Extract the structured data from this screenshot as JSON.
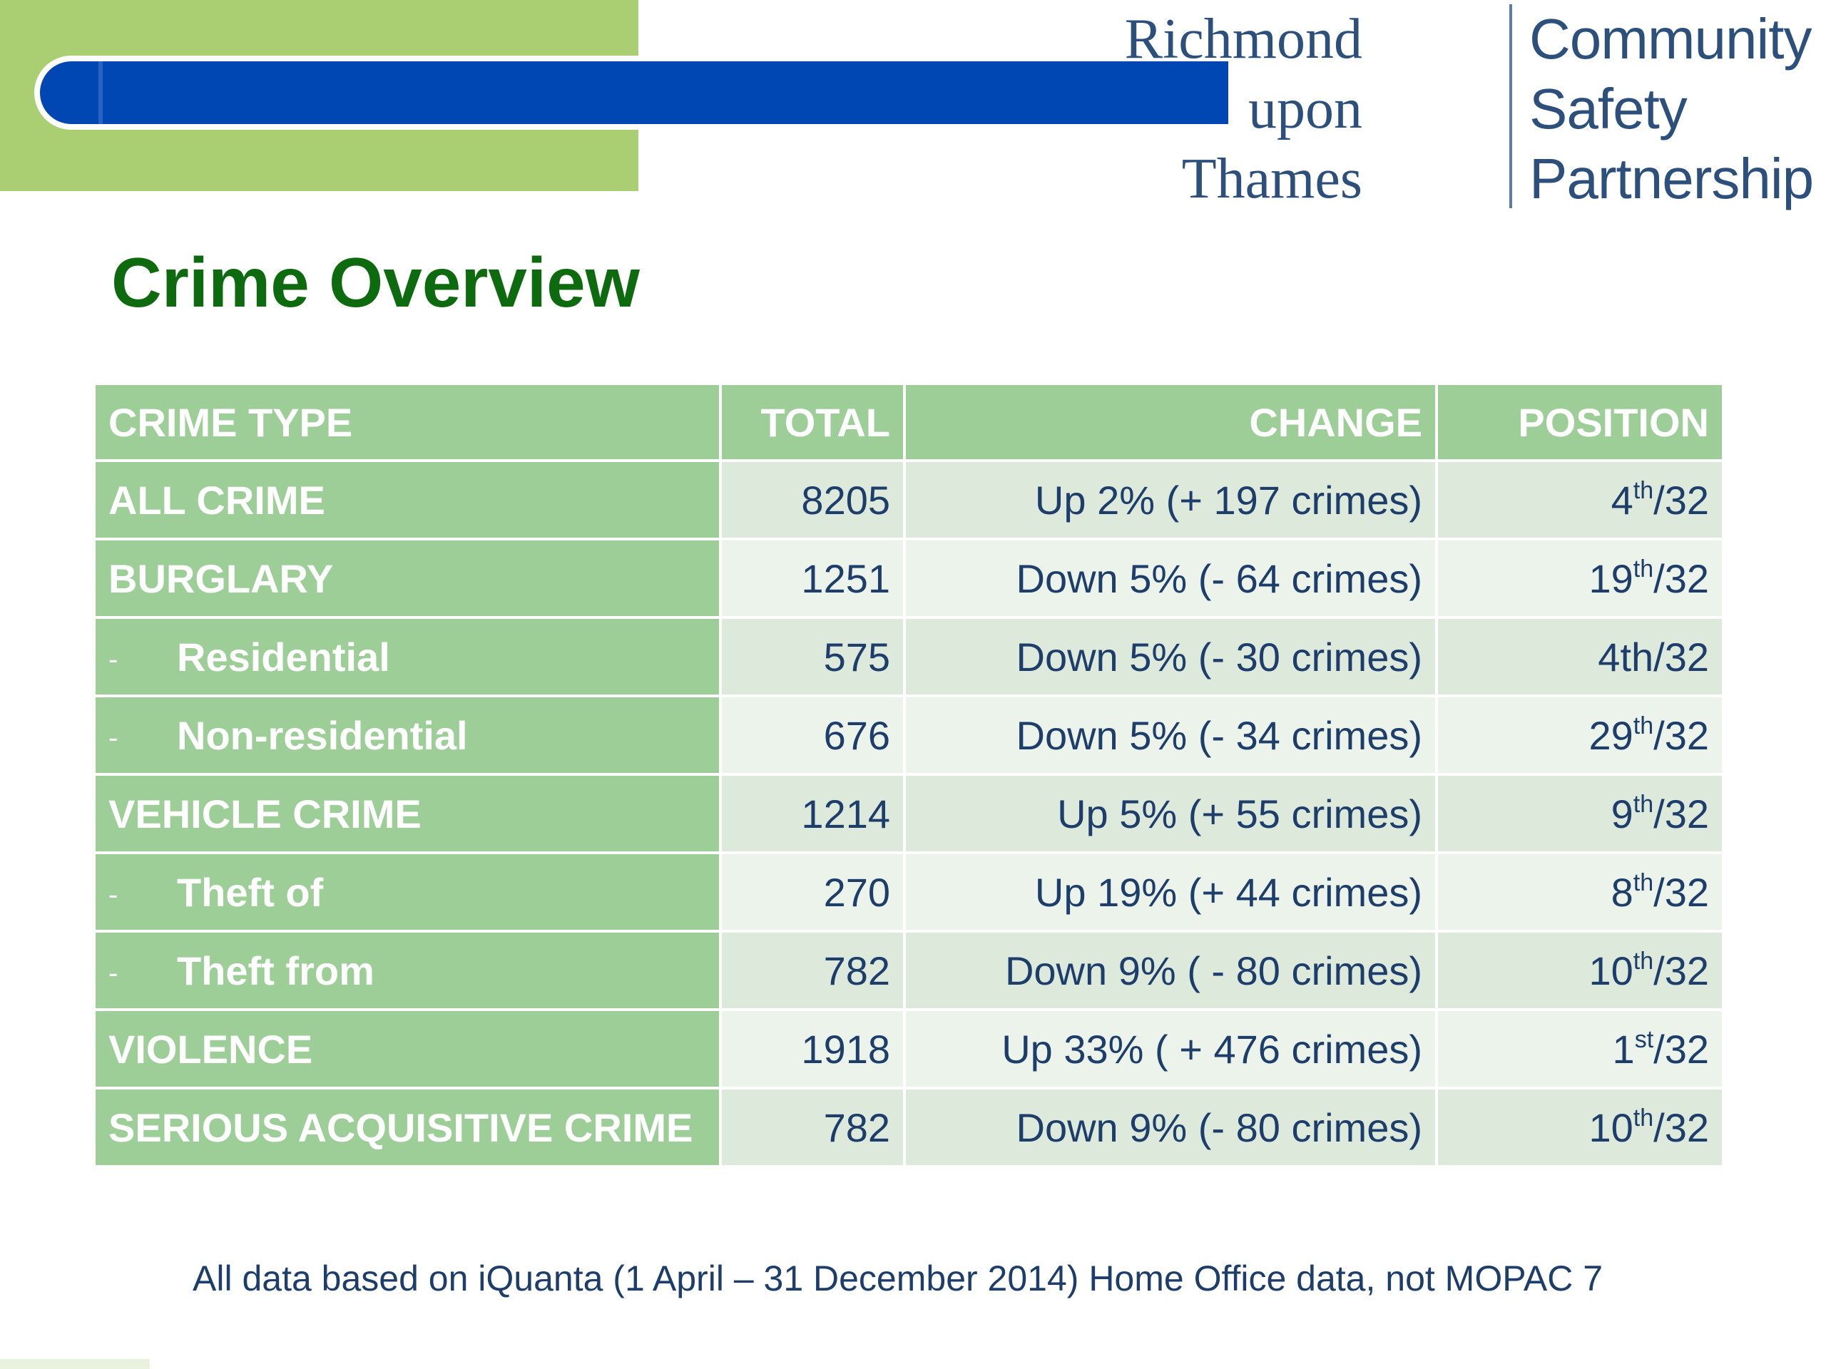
{
  "logo": {
    "left_lines": [
      "Richmond",
      "upon",
      "Thames"
    ],
    "right_lines": [
      "Community",
      "Safety",
      "Partnership"
    ]
  },
  "title": "Crime Overview",
  "table": {
    "headers": [
      "CRIME TYPE",
      "TOTAL",
      "CHANGE",
      "POSITION"
    ],
    "rows": [
      {
        "type": "ALL CRIME",
        "sub": false,
        "total": "8205",
        "change": "Up 2% (+ 197 crimes)",
        "pos_num": "4",
        "pos_sup": "th",
        "pos_rest": "/32"
      },
      {
        "type": "BURGLARY",
        "sub": false,
        "total": "1251",
        "change": "Down 5% (- 64 crimes)",
        "pos_num": "19",
        "pos_sup": "th",
        "pos_rest": "/32"
      },
      {
        "type": "Residential",
        "sub": true,
        "total": "575",
        "change": "Down 5% (- 30 crimes)",
        "pos_num": "4th/32",
        "pos_sup": "",
        "pos_rest": ""
      },
      {
        "type": "Non-residential",
        "sub": true,
        "total": "676",
        "change": "Down 5% (- 34 crimes)",
        "pos_num": "29",
        "pos_sup": "th",
        "pos_rest": "/32"
      },
      {
        "type": "VEHICLE CRIME",
        "sub": false,
        "total": "1214",
        "change": "Up 5% (+ 55 crimes)",
        "pos_num": "9",
        "pos_sup": "th",
        "pos_rest": "/32"
      },
      {
        "type": "Theft of",
        "sub": true,
        "total": "270",
        "change": "Up 19% (+ 44 crimes)",
        "pos_num": "8",
        "pos_sup": "th",
        "pos_rest": "/32"
      },
      {
        "type": "Theft from",
        "sub": true,
        "total": "782",
        "change": "Down 9% ( - 80 crimes)",
        "pos_num": "10",
        "pos_sup": "th",
        "pos_rest": "/32"
      },
      {
        "type": "VIOLENCE",
        "sub": false,
        "total": "1918",
        "change": "Up 33% ( + 476 crimes)",
        "pos_num": "1",
        "pos_sup": "st",
        "pos_rest": "/32"
      },
      {
        "type": "SERIOUS ACQUISITIVE CRIME",
        "sub": false,
        "total": "782",
        "change": "Down 9% (- 80 crimes)",
        "pos_num": "10",
        "pos_sup": "th",
        "pos_rest": "/32"
      }
    ],
    "sub_marker": "-"
  },
  "footnote": "All data based on iQuanta (1 April – 31 December 2014) Home Office data, not MOPAC 7",
  "colors": {
    "title_green": "#0e6a0e",
    "header_green": "#9dce98",
    "bar_blue": "#0047b3",
    "block_green": "#a9cf72",
    "text_navy": "#1d3d6b"
  }
}
